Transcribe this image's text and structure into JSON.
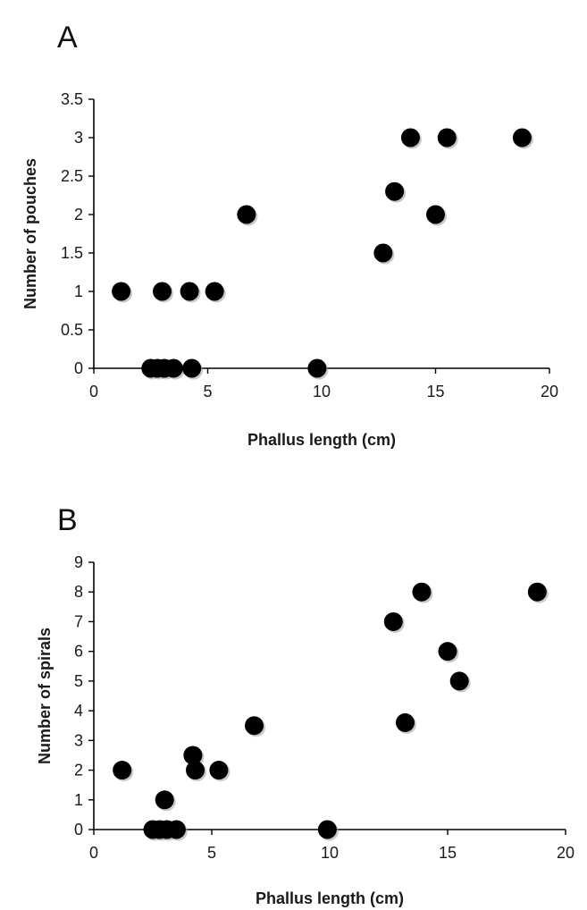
{
  "chart_data": [
    {
      "type": "scatter",
      "panel_label": "A",
      "title": "",
      "xlabel": "Phallus length (cm)",
      "ylabel": "Number of pouches",
      "xlim": [
        0,
        20
      ],
      "ylim": [
        0,
        3.5
      ],
      "xticks": [
        0,
        5,
        10,
        15,
        20
      ],
      "yticks": [
        0,
        0.5,
        1,
        1.5,
        2,
        2.5,
        3,
        3.5
      ],
      "grid": false,
      "legend": "none",
      "marker_color": "#000000",
      "points": [
        {
          "x": 1.2,
          "y": 1
        },
        {
          "x": 3.0,
          "y": 1
        },
        {
          "x": 4.2,
          "y": 1
        },
        {
          "x": 5.3,
          "y": 1
        },
        {
          "x": 2.5,
          "y": 0
        },
        {
          "x": 2.8,
          "y": 0
        },
        {
          "x": 3.1,
          "y": 0
        },
        {
          "x": 3.5,
          "y": 0
        },
        {
          "x": 4.3,
          "y": 0
        },
        {
          "x": 9.8,
          "y": 0
        },
        {
          "x": 6.7,
          "y": 2
        },
        {
          "x": 12.7,
          "y": 1.5
        },
        {
          "x": 13.2,
          "y": 2.3
        },
        {
          "x": 13.9,
          "y": 3
        },
        {
          "x": 15.0,
          "y": 2
        },
        {
          "x": 15.5,
          "y": 3
        },
        {
          "x": 18.8,
          "y": 3
        }
      ]
    },
    {
      "type": "scatter",
      "panel_label": "B",
      "title": "",
      "xlabel": "Phallus length (cm)",
      "ylabel": "Number of spirals",
      "xlim": [
        0,
        20
      ],
      "ylim": [
        0,
        9
      ],
      "xticks": [
        0,
        5,
        10,
        15,
        20
      ],
      "yticks": [
        0,
        1,
        2,
        3,
        4,
        5,
        6,
        7,
        8,
        9
      ],
      "grid": false,
      "legend": "none",
      "marker_color": "#000000",
      "points": [
        {
          "x": 1.2,
          "y": 2
        },
        {
          "x": 3.0,
          "y": 1
        },
        {
          "x": 4.2,
          "y": 2.5
        },
        {
          "x": 4.3,
          "y": 2
        },
        {
          "x": 5.3,
          "y": 2
        },
        {
          "x": 6.8,
          "y": 3.5
        },
        {
          "x": 2.5,
          "y": 0
        },
        {
          "x": 2.8,
          "y": 0
        },
        {
          "x": 3.1,
          "y": 0
        },
        {
          "x": 3.5,
          "y": 0
        },
        {
          "x": 9.9,
          "y": 0
        },
        {
          "x": 12.7,
          "y": 7
        },
        {
          "x": 13.2,
          "y": 3.6
        },
        {
          "x": 13.9,
          "y": 8
        },
        {
          "x": 15.0,
          "y": 6
        },
        {
          "x": 15.5,
          "y": 5
        },
        {
          "x": 18.8,
          "y": 8
        }
      ]
    }
  ]
}
